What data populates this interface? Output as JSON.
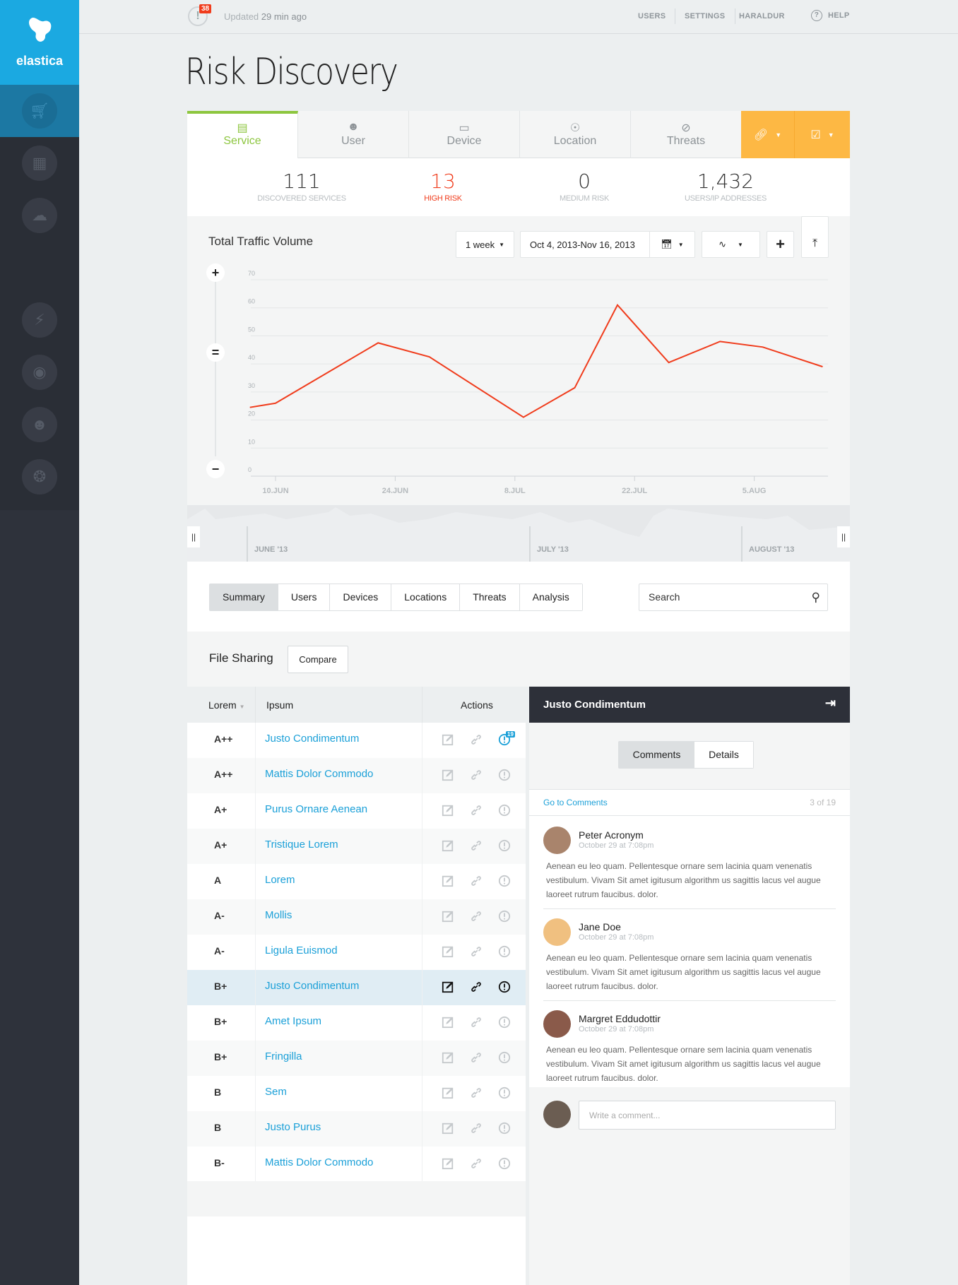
{
  "brand": {
    "name": "elastica",
    "color": "#1ba9e1"
  },
  "sidebar": {
    "items": [
      {
        "icon": "basket-icon",
        "active": true
      },
      {
        "icon": "grid-icon"
      },
      {
        "icon": "cloud-icon"
      },
      {
        "icon": "search-icon"
      },
      {
        "icon": "lightning-icon"
      },
      {
        "icon": "eye-icon"
      },
      {
        "icon": "user-icon"
      },
      {
        "icon": "compass-icon"
      }
    ]
  },
  "topbar": {
    "alert_count": "38",
    "updated_prefix": "Updated",
    "updated_time": "29 min ago",
    "nav": [
      "USERS",
      "SETTINGS",
      "HARALDUR"
    ],
    "help": "HELP"
  },
  "page": {
    "title": "Risk Discovery"
  },
  "tabs": [
    {
      "label": "Service",
      "icon": "list-icon",
      "active": true
    },
    {
      "label": "User",
      "icon": "user-icon"
    },
    {
      "label": "Device",
      "icon": "monitor-icon"
    },
    {
      "label": "Location",
      "icon": "pin-icon"
    },
    {
      "label": "Threats",
      "icon": "ban-icon"
    }
  ],
  "accent": {
    "orange": "#fdb844",
    "green": "#8dc63f",
    "red": "#f03c1c",
    "blue": "#1ba0d8"
  },
  "stats": [
    {
      "value": "111",
      "label": "DISCOVERED SERVICES"
    },
    {
      "value": "13",
      "label": "HIGH RISK",
      "highlight": true
    },
    {
      "value": "0",
      "label": "MEDIUM RISK"
    },
    {
      "value": "1,432",
      "label": "USERS/IP ADDRESSES"
    }
  ],
  "chart_controls": {
    "period": "1 week",
    "date_range": "Oct 4, 2013-Nov 16, 2013"
  },
  "chart_data": {
    "type": "line",
    "title": "Total Traffic Volume",
    "ylim": [
      0,
      70
    ],
    "yticks": [
      0,
      10,
      20,
      30,
      40,
      50,
      60,
      70
    ],
    "xticks": [
      "10.JUN",
      "24.JUN",
      "8.JUL",
      "22.JUL",
      "5.AUG"
    ],
    "grid": true,
    "color": "#f03c1c",
    "x": [
      "2013-06-07",
      "2013-06-10",
      "2013-06-22",
      "2013-06-28",
      "2013-07-09",
      "2013-07-15",
      "2013-07-20",
      "2013-07-26",
      "2013-08-01",
      "2013-08-06",
      "2013-08-13"
    ],
    "values": [
      24.5,
      26,
      47.5,
      42.5,
      21,
      31.5,
      61,
      40.5,
      48,
      46,
      39
    ]
  },
  "navigator": {
    "labels": [
      "JUNE '13",
      "JULY '13",
      "AUGUST '13"
    ]
  },
  "subtabs": [
    {
      "label": "Summary",
      "active": true
    },
    {
      "label": "Users"
    },
    {
      "label": "Devices"
    },
    {
      "label": "Locations"
    },
    {
      "label": "Threats"
    },
    {
      "label": "Analysis"
    }
  ],
  "search": {
    "placeholder": "Search"
  },
  "section": {
    "title": "File Sharing",
    "compare": "Compare"
  },
  "table": {
    "headers": [
      "Lorem",
      "Ipsum",
      "Actions"
    ],
    "rows": [
      {
        "grade": "A++",
        "name": "Justo Condimentum",
        "badge": "19"
      },
      {
        "grade": "A++",
        "name": "Mattis Dolor Commodo"
      },
      {
        "grade": "A+",
        "name": "Purus Ornare Aenean"
      },
      {
        "grade": "A+",
        "name": "Tristique Lorem"
      },
      {
        "grade": "A",
        "name": "Lorem"
      },
      {
        "grade": "A-",
        "name": "Mollis"
      },
      {
        "grade": "A-",
        "name": "Ligula Euismod"
      },
      {
        "grade": "B+",
        "name": "Justo Condimentum",
        "selected": true
      },
      {
        "grade": "B+",
        "name": "Amet Ipsum"
      },
      {
        "grade": "B+",
        "name": "Fringilla"
      },
      {
        "grade": "B",
        "name": "Sem"
      },
      {
        "grade": "B",
        "name": "Justo Purus"
      },
      {
        "grade": "B-",
        "name": "Mattis Dolor Commodo"
      }
    ]
  },
  "panel": {
    "title": "Justo Condimentum",
    "tabs": [
      "Comments",
      "Details"
    ],
    "goto": "Go to Comments",
    "count": "3 of 19",
    "comments": [
      {
        "name": "Peter Acronym",
        "date": "October 29 at 7:08pm",
        "text": "Aenean eu leo quam. Pellentesque ornare sem lacinia quam venenatis vestibulum. Vivam Sit amet igitusum algorithm us sagittis lacus vel augue laoreet rutrum faucibus. dolor.",
        "avatar": "#a9846c"
      },
      {
        "name": "Jane Doe",
        "date": "October 29 at 7:08pm",
        "text": "Aenean eu leo quam. Pellentesque ornare sem lacinia quam venenatis vestibulum. Vivam Sit amet igitusum algorithm us sagittis lacus vel augue laoreet rutrum faucibus. dolor.",
        "avatar": "#f0c080"
      },
      {
        "name": "Margret Eddudottir",
        "date": "October 29 at 7:08pm",
        "text": "Aenean eu leo quam. Pellentesque ornare sem lacinia quam venenatis vestibulum. Vivam Sit amet igitusum algorithm us sagittis lacus vel augue laoreet rutrum faucibus. dolor.",
        "avatar": "#8a5a4a"
      }
    ],
    "write_placeholder": "Write a comment..."
  }
}
